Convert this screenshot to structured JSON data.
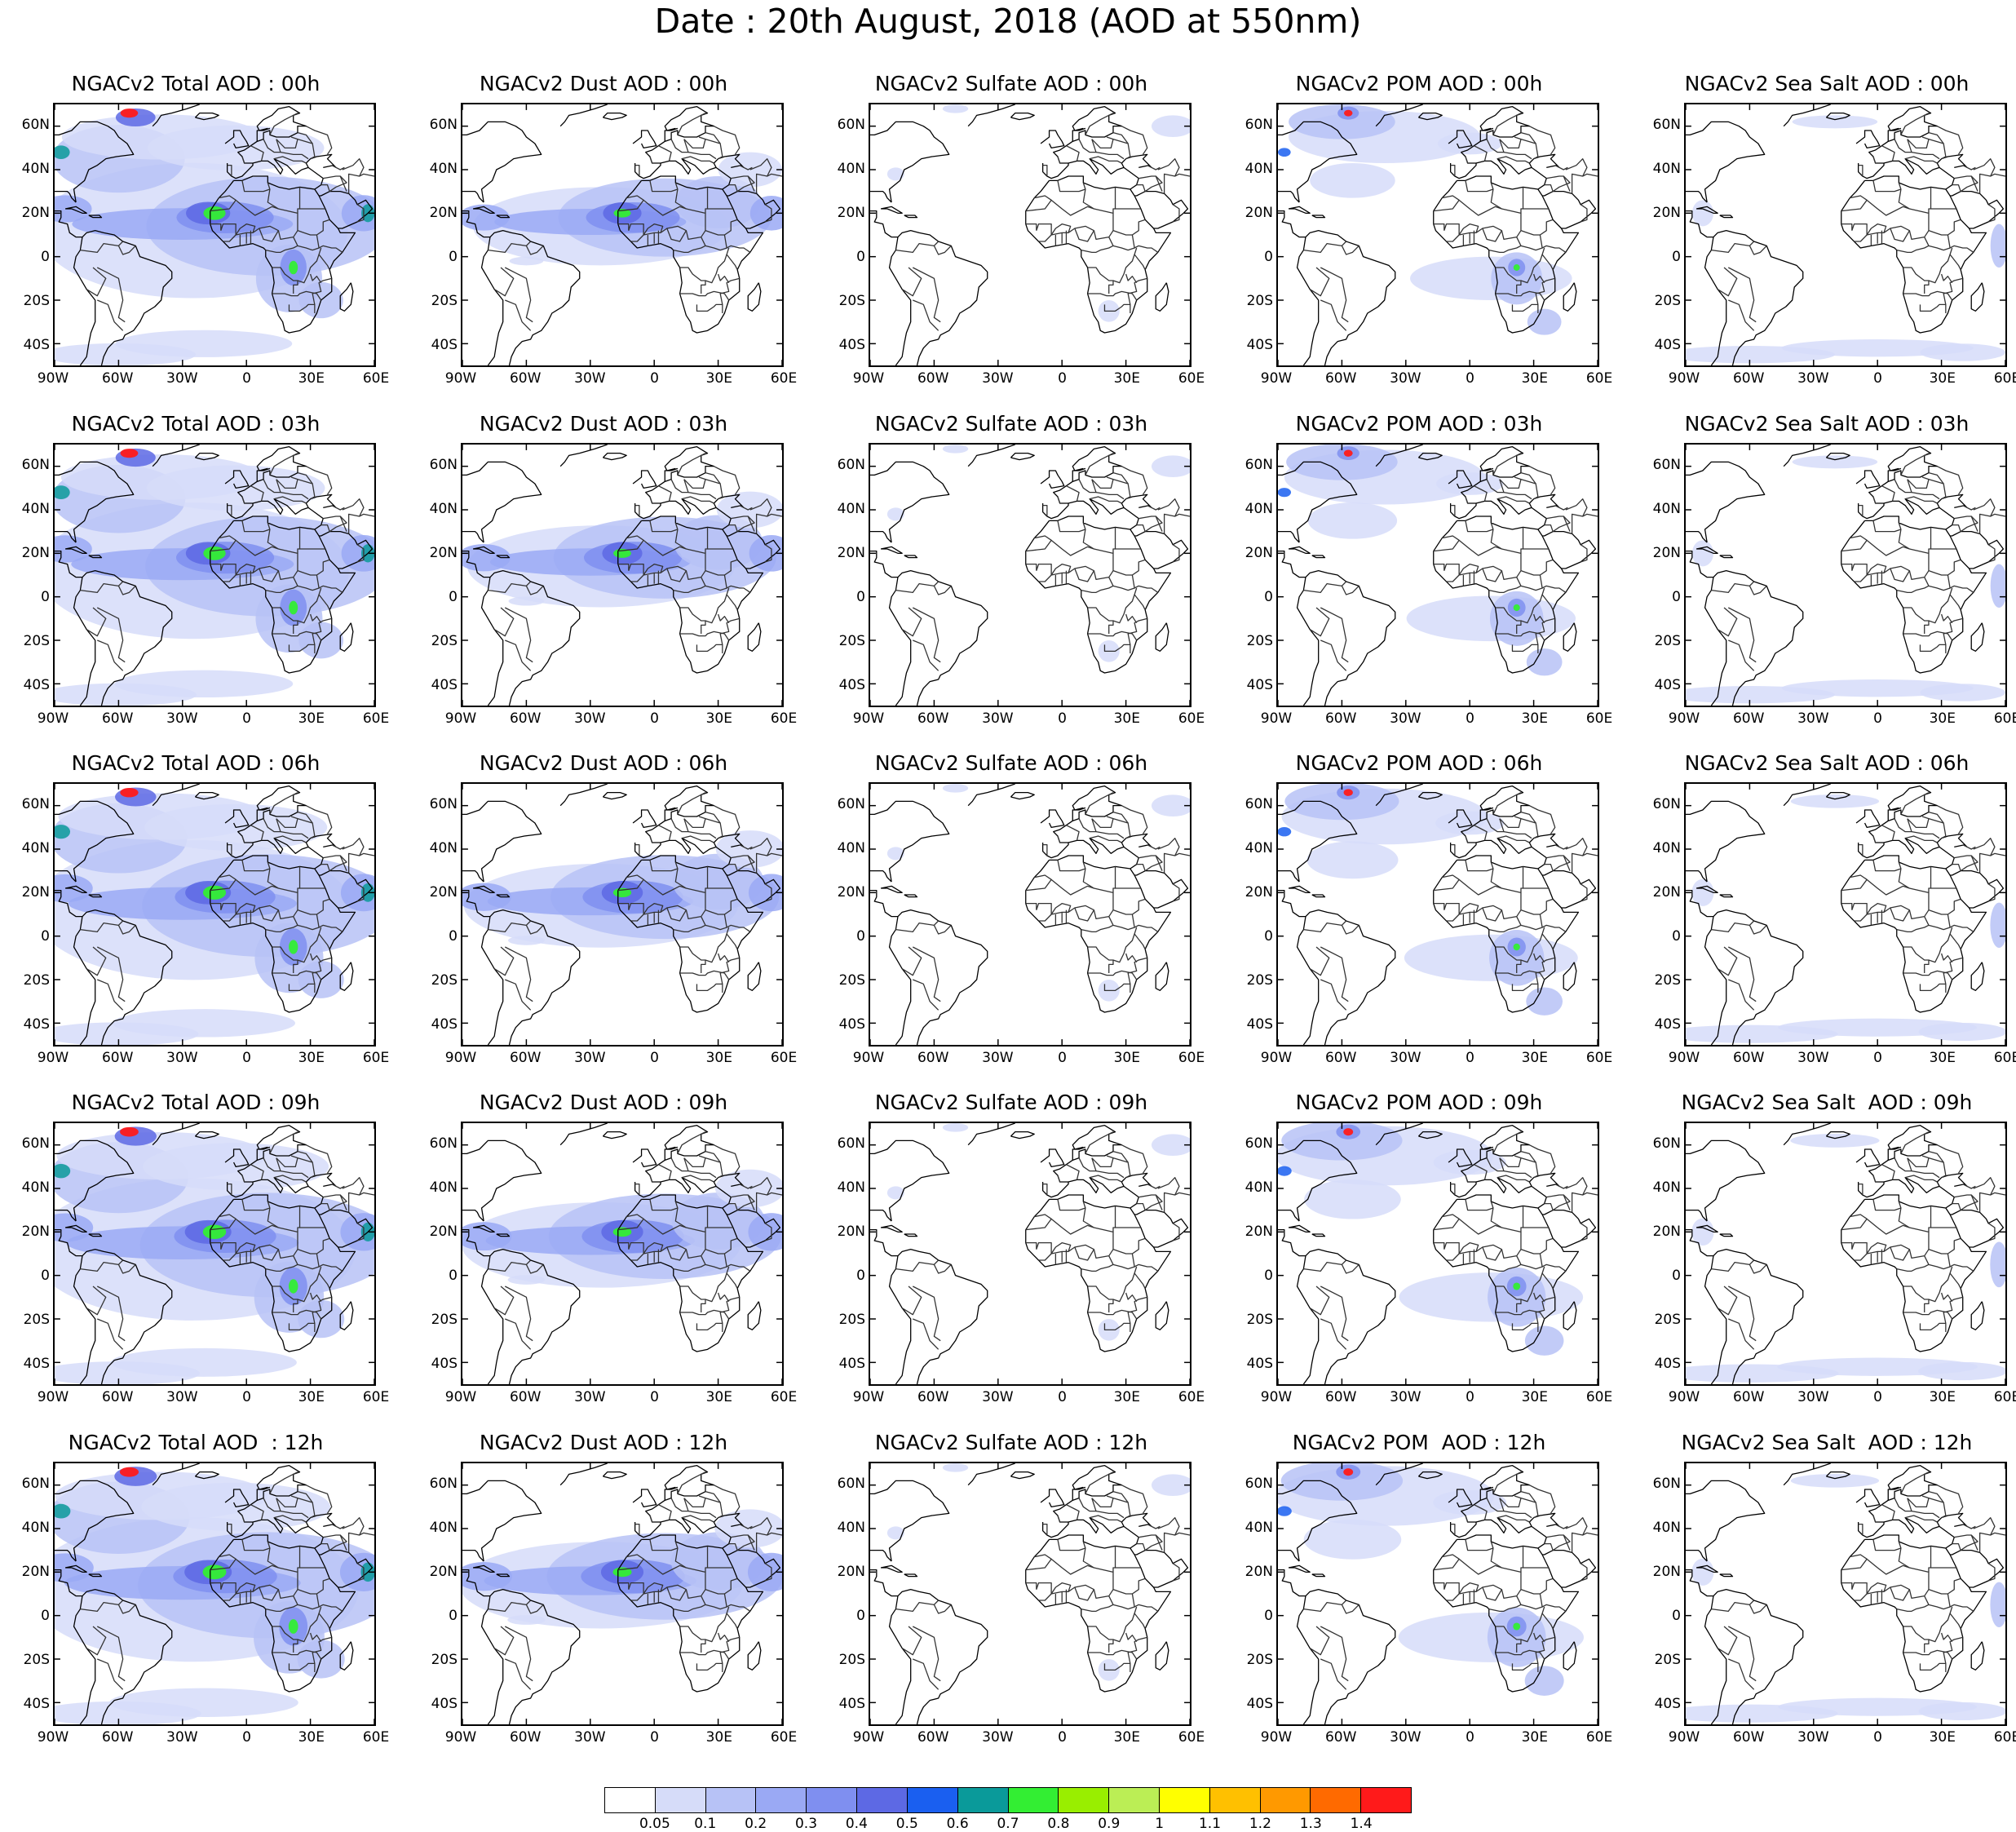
{
  "title": "Date : 20th August, 2018 (AOD at 550nm)",
  "columns": [
    "total",
    "dust",
    "sulfate",
    "pom",
    "seasalt"
  ],
  "panel_titles": [
    [
      "NGACv2 Total AOD : 00h",
      "NGACv2 Dust AOD : 00h",
      "NGACv2 Sulfate AOD : 00h",
      "NGACv2 POM AOD : 00h",
      "NGACv2 Sea Salt AOD : 00h"
    ],
    [
      "NGACv2 Total AOD : 03h",
      "NGACv2 Dust AOD : 03h",
      "NGACv2 Sulfate AOD : 03h",
      "NGACv2 POM AOD : 03h",
      "NGACv2 Sea Salt AOD : 03h"
    ],
    [
      "NGACv2 Total AOD : 06h",
      "NGACv2 Dust AOD : 06h",
      "NGACv2 Sulfate AOD : 06h",
      "NGACv2 POM AOD : 06h",
      "NGACv2 Sea Salt AOD : 06h"
    ],
    [
      "NGACv2 Total AOD : 09h",
      "NGACv2 Dust AOD : 09h",
      "NGACv2 Sulfate AOD : 09h",
      "NGACv2 POM AOD : 09h",
      "NGACv2 Sea Salt  AOD : 09h"
    ],
    [
      "NGACv2 Total AOD  : 12h",
      "NGACv2 Dust AOD : 12h",
      "NGACv2 Sulfate AOD : 12h",
      "NGACv2 POM  AOD : 12h",
      "NGACv2 Sea Salt  AOD : 12h"
    ]
  ],
  "lat_labels": [
    "60N",
    "40N",
    "20N",
    "0",
    "20S",
    "40S"
  ],
  "lat_values": [
    60,
    40,
    20,
    0,
    -20,
    -40
  ],
  "lon_labels": [
    "90W",
    "60W",
    "30W",
    "0",
    "30E",
    "60E"
  ],
  "lon_values": [
    -90,
    -60,
    -30,
    0,
    30,
    60
  ],
  "extent": {
    "lon": [
      -90,
      60
    ],
    "lat": [
      -50,
      70
    ]
  },
  "colorbar": {
    "levels": [
      "0.05",
      "0.1",
      "0.2",
      "0.3",
      "0.4",
      "0.5",
      "0.6",
      "0.7",
      "0.8",
      "0.9",
      "1",
      "1.1",
      "1.2",
      "1.3",
      "1.4"
    ],
    "colors": [
      "#ffffff",
      "#d6dcf9",
      "#b7c2f6",
      "#9aa9f4",
      "#7f8ff0",
      "#5d69e4",
      "#1a5ff0",
      "#0a9a9a",
      "#33ee33",
      "#99ee00",
      "#bbee55",
      "#ffff00",
      "#ffc000",
      "#ff9900",
      "#ff6a00",
      "#ff1a1a"
    ]
  },
  "field_levels": {
    "total": [
      "low",
      "low",
      "mid",
      "mid",
      "high"
    ],
    "dust": [
      "none",
      "low",
      "mid",
      "mid",
      "high"
    ],
    "sulfate": [
      "none",
      "trace",
      "trace",
      "trace",
      "trace"
    ],
    "pom": [
      "none",
      "low",
      "mid",
      "high",
      "peak"
    ],
    "seasalt": [
      "none",
      "trace",
      "low",
      "low",
      "low"
    ]
  }
}
